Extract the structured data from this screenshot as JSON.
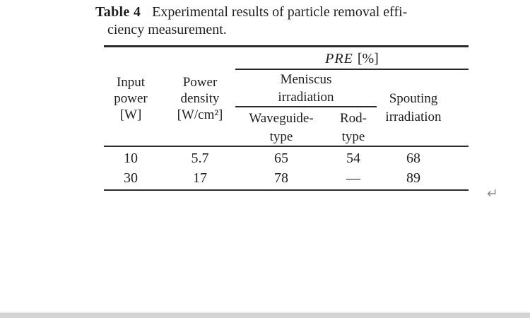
{
  "theme": {
    "page_background": "#ffffff",
    "text_color": "#1e1e1e",
    "rule_color": "#2b2b2b",
    "return_mark_color": "#8c8c8c",
    "bottom_bar_color": "#d4d4d4"
  },
  "caption": {
    "label": "Table 4",
    "text_line1": "Experimental results of particle removal effi-",
    "text_line2": "ciency measurement."
  },
  "table": {
    "pre_header": {
      "name": "PRE",
      "unit": "[%]"
    },
    "columns": {
      "input_power": [
        "Input",
        "power",
        "[W]"
      ],
      "power_density": [
        "Power",
        "density",
        "[W/cm²]"
      ],
      "meniscus_group": [
        "Meniscus",
        "irradiation"
      ],
      "waveguide": [
        "Waveguide-",
        "type"
      ],
      "rod": [
        "Rod-",
        "type"
      ],
      "spouting": [
        "Spouting",
        "irradiation"
      ]
    },
    "rows": [
      [
        "10",
        "5.7",
        "65",
        "54",
        "68"
      ],
      [
        "30",
        "17",
        "78",
        "—",
        "89"
      ]
    ]
  },
  "marks": {
    "line_break": "↵"
  }
}
